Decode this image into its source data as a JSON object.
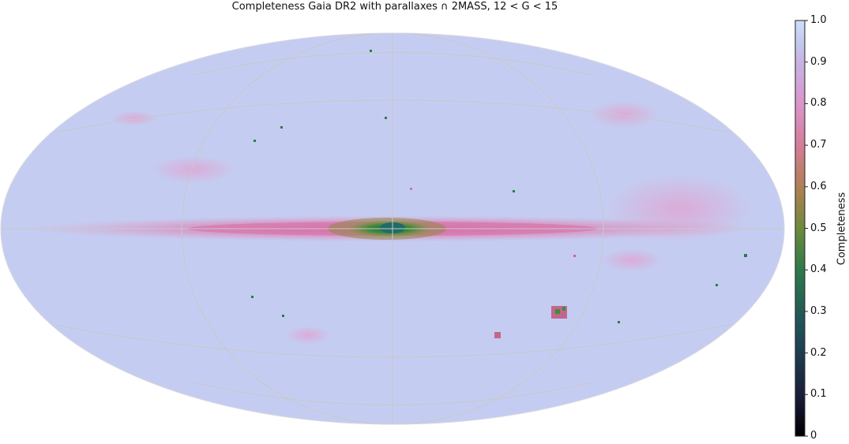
{
  "title": "Completeness Gaia DR2 with parallaxes ∩ 2MASS,  12 < G < 15",
  "colorbar": {
    "label": "Completeness",
    "ticks": [
      "1.0",
      "0.9",
      "0.8",
      "0.7",
      "0.6",
      "0.5",
      "0.4",
      "0.3",
      "0.2",
      "0.1",
      "0"
    ],
    "colormap_stops": [
      "#000000",
      "#1b1e3c",
      "#1f4c5a",
      "#2e7a4b",
      "#6f8a3c",
      "#b08055",
      "#d67c99",
      "#d996cc",
      "#c9b2e4",
      "#c2cbee",
      "#cfe0f8"
    ]
  },
  "map": {
    "projection": "mollweide",
    "background_completeness": 0.95,
    "graticule": true,
    "galactic_plane_band": "pink with green core near center",
    "colors": {
      "background": "#c4cdf1",
      "band": "#e08fb6",
      "core": "#3f8a3a",
      "grid": "#c8c8c8"
    }
  }
}
